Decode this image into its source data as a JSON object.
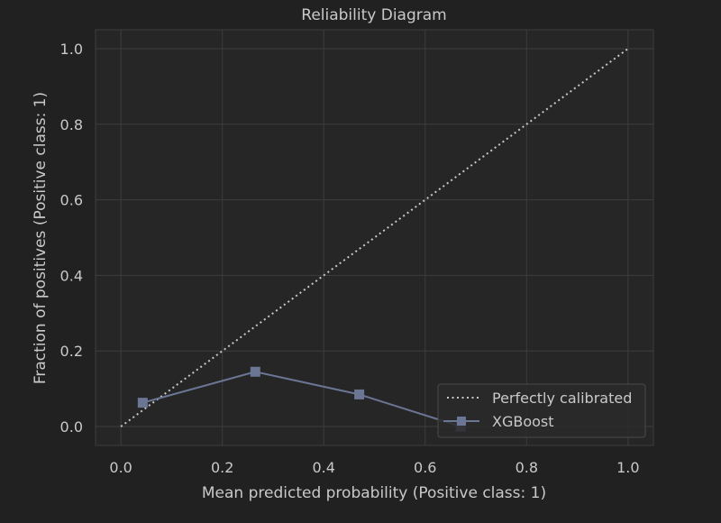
{
  "chart_data": {
    "type": "line",
    "title": "Reliability Diagram",
    "xlabel": "Mean predicted probability (Positive class: 1)",
    "ylabel": "Fraction of positives (Positive class: 1)",
    "xlim": [
      -0.05,
      1.05
    ],
    "ylim": [
      -0.05,
      1.05
    ],
    "xticks": [
      0.0,
      0.2,
      0.4,
      0.6,
      0.8,
      1.0
    ],
    "yticks": [
      0.0,
      0.2,
      0.4,
      0.6,
      0.8,
      1.0
    ],
    "xtick_labels": [
      "0.0",
      "0.2",
      "0.4",
      "0.6",
      "0.8",
      "1.0"
    ],
    "ytick_labels": [
      "0.0",
      "0.2",
      "0.4",
      "0.6",
      "0.8",
      "1.0"
    ],
    "grid": true,
    "legend_position": "bottom-right",
    "series": [
      {
        "name": "Perfectly calibrated",
        "style": "dotted",
        "color": "#c8c8c8",
        "x": [
          0.0,
          1.0
        ],
        "y": [
          0.0,
          1.0
        ]
      },
      {
        "name": "XGBoost",
        "style": "solid",
        "marker": "square",
        "color": "#6a7694",
        "x": [
          0.043,
          0.265,
          0.47,
          0.67
        ],
        "y": [
          0.063,
          0.145,
          0.085,
          0.0
        ]
      }
    ]
  },
  "colors": {
    "background": "#212121",
    "axes_face": "#262626",
    "grid": "#3d3d3d",
    "text": "#c9c9c9",
    "legend_bg": "#2a2a2a",
    "legend_border": "#4a4a4a"
  }
}
